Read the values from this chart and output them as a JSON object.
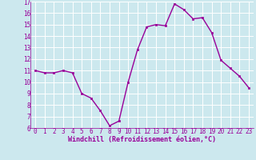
{
  "x": [
    0,
    1,
    2,
    3,
    4,
    5,
    6,
    7,
    8,
    9,
    10,
    11,
    12,
    13,
    14,
    15,
    16,
    17,
    18,
    19,
    20,
    21,
    22,
    23
  ],
  "y": [
    11,
    10.8,
    10.8,
    11,
    10.8,
    9.0,
    8.6,
    7.5,
    6.2,
    6.6,
    10.0,
    12.8,
    14.8,
    15.0,
    14.9,
    16.8,
    16.3,
    15.5,
    15.6,
    14.3,
    11.9,
    11.2,
    10.5,
    9.5
  ],
  "line_color": "#990099",
  "marker": "s",
  "marker_size": 2.0,
  "bg_color": "#cce8ee",
  "grid_color": "#ffffff",
  "xlabel": "Windchill (Refroidissement éolien,°C)",
  "xlabel_color": "#990099",
  "tick_color": "#990099",
  "xlim": [
    -0.5,
    23.5
  ],
  "ylim": [
    6,
    17
  ],
  "yticks": [
    6,
    7,
    8,
    9,
    10,
    11,
    12,
    13,
    14,
    15,
    16,
    17
  ],
  "xticks": [
    0,
    1,
    2,
    3,
    4,
    5,
    6,
    7,
    8,
    9,
    10,
    11,
    12,
    13,
    14,
    15,
    16,
    17,
    18,
    19,
    20,
    21,
    22,
    23
  ],
  "linewidth": 1.0,
  "tick_fontsize": 5.5,
  "xlabel_fontsize": 6.0
}
